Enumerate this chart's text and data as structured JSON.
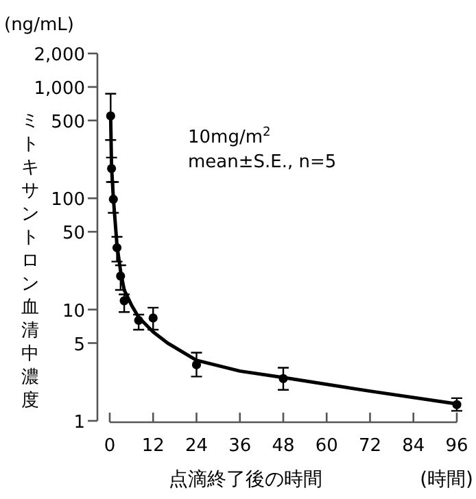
{
  "chart_data": {
    "type": "scatter",
    "ylabel": "ミトキサントロン血清中濃度",
    "xlabel": "点滴終了後の時間",
    "annotations": [
      "(ng/mL)",
      "(時間)",
      "10mg/m$^{2}$",
      "mean±S.E., n=5"
    ],
    "log": "y",
    "xlim": [
      0,
      96
    ],
    "xticks": [
      0,
      12,
      24,
      36,
      48,
      60,
      72,
      84,
      96
    ],
    "ylim": [
      1,
      2000
    ],
    "yticks": [
      1,
      5,
      10,
      50,
      100,
      500,
      {
        "value": 1000,
        "label": "1,000"
      },
      {
        "value": 2000,
        "label": "2,000"
      }
    ],
    "legend": false,
    "grid": false,
    "series": [
      {
        "color": "#000000",
        "marker": "circle",
        "x": [
          0.25,
          0.5,
          1,
          2,
          3,
          4,
          8,
          12,
          24,
          48,
          96
        ],
        "values": [
          550,
          185,
          98,
          36,
          20,
          12,
          8,
          8.4,
          3.2,
          2.4,
          1.4
        ],
        "errors": [
          [
            334,
            870
          ],
          [
            140,
            232
          ],
          [
            74,
            140
          ],
          [
            27,
            45
          ],
          [
            15,
            25
          ],
          [
            9.5,
            13.7
          ],
          [
            6.6,
            9
          ],
          [
            6.6,
            10.4
          ],
          [
            2.5,
            4.1
          ],
          [
            1.9,
            3
          ],
          [
            1.23,
            1.6
          ]
        ]
      },
      {
        "type": "line",
        "color": "#000000",
        "marker": "none",
        "line_style": "solid",
        "x": [
          0.25,
          0.5,
          1,
          2,
          3,
          4,
          6,
          8,
          12,
          16,
          24,
          36,
          48,
          72,
          96
        ],
        "values": [
          550,
          190,
          100,
          38,
          22,
          15,
          11,
          8.5,
          6.3,
          5,
          3.5,
          2.8,
          2.45,
          1.85,
          1.42
        ]
      }
    ]
  }
}
